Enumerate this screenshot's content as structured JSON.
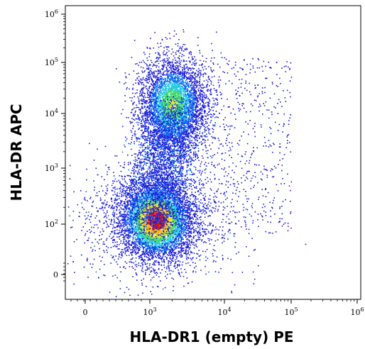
{
  "chart_data": {
    "type": "scatter",
    "subtype": "density dot plot (biexponential axes)",
    "title": "",
    "xlabel": "HLA-DR1 (empty) PE",
    "ylabel": "HLA-DR APC",
    "x_scale": "biexponential",
    "y_scale": "biexponential",
    "x_ticks": [
      {
        "value": 0,
        "label": "0"
      },
      {
        "value": 1000,
        "label": "10^3"
      },
      {
        "value": 10000,
        "label": "10^4"
      },
      {
        "value": 100000,
        "label": "10^5"
      },
      {
        "value": 1000000,
        "label": "10^6"
      }
    ],
    "y_ticks": [
      {
        "value": 0,
        "label": "0"
      },
      {
        "value": 100,
        "label": "10^2"
      },
      {
        "value": 1000,
        "label": "10^3"
      },
      {
        "value": 10000,
        "label": "10^4"
      },
      {
        "value": 100000,
        "label": "10^5"
      },
      {
        "value": 1000000,
        "label": "10^6"
      }
    ],
    "grid": false,
    "legend": "none",
    "color_scale": [
      "#1b1bd6",
      "#0a6cf0",
      "#1ec8e0",
      "#3ed66a",
      "#d8e81e",
      "#ffb000",
      "#e0120a"
    ],
    "populations": [
      {
        "center_x": 1200,
        "center_y": 120,
        "density": "high",
        "peak_color": "#e0120a"
      },
      {
        "center_x": 2000,
        "center_y": 15000,
        "density": "medium",
        "peak_color": "#1ec8e0"
      },
      {
        "center_x": 30000,
        "center_y": 3000,
        "density": "sparse",
        "peak_color": "#1b1bd6"
      }
    ]
  }
}
